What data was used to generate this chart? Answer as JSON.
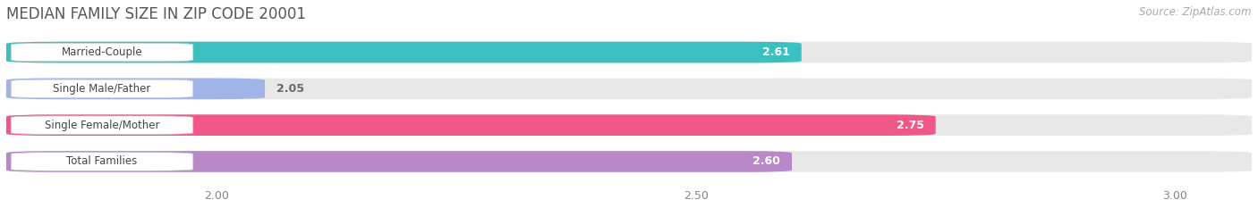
{
  "title": "MEDIAN FAMILY SIZE IN ZIP CODE 20001",
  "source": "Source: ZipAtlas.com",
  "categories": [
    "Married-Couple",
    "Single Male/Father",
    "Single Female/Mother",
    "Total Families"
  ],
  "values": [
    2.61,
    2.05,
    2.75,
    2.6
  ],
  "bar_colors": [
    "#3bbfbf",
    "#a0b4e8",
    "#f05888",
    "#b888c8"
  ],
  "label_color": [
    "#ffffff",
    "#666666",
    "#ffffff",
    "#ffffff"
  ],
  "value_color": [
    "#ffffff",
    "#666666",
    "#ffffff",
    "#ffffff"
  ],
  "xlim": [
    1.78,
    3.08
  ],
  "xticks": [
    2.0,
    2.5,
    3.0
  ],
  "bar_height": 0.58,
  "bar_gap": 0.12,
  "figsize": [
    14.06,
    2.33
  ],
  "dpi": 100,
  "background_color": "#ffffff",
  "bar_bg_color": "#e8e8e8",
  "grid_color": "#ffffff",
  "title_fontsize": 12,
  "source_fontsize": 8.5,
  "tick_fontsize": 9,
  "label_fontsize": 8.5,
  "value_fontsize": 9
}
